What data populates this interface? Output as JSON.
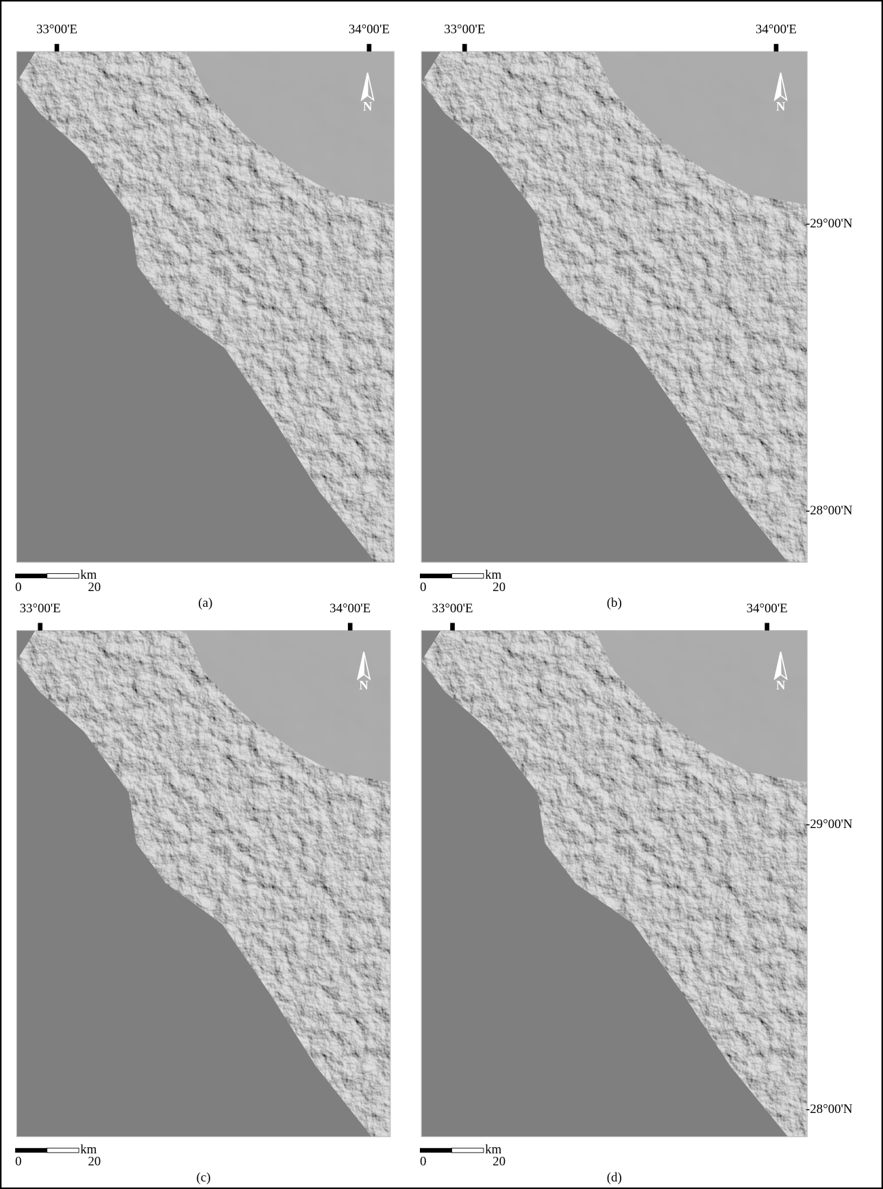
{
  "panels": [
    {
      "caption": "(a)",
      "lon_labels": [
        "33°00'E",
        "34°00'E"
      ],
      "lat_labels": [],
      "north_label": "N",
      "scale": {
        "unit": "km",
        "ticks": [
          0,
          20
        ]
      }
    },
    {
      "caption": "(b)",
      "lon_labels": [
        "33°00'E",
        "34°00'E"
      ],
      "lat_labels": [
        "-29°00'N",
        "-28°00'N"
      ],
      "north_label": "N",
      "scale": {
        "unit": "km",
        "ticks": [
          0,
          20
        ]
      }
    },
    {
      "caption": "(c)",
      "lon_labels": [
        "33°00'E",
        "34°00'E"
      ],
      "lat_labels": [],
      "north_label": "N",
      "scale": {
        "unit": "km",
        "ticks": [
          0,
          20
        ]
      }
    },
    {
      "caption": "(d)",
      "lon_labels": [
        "33°00'E",
        "34°00'E"
      ],
      "lat_labels": [
        "-29°00'N",
        "-28°00'N"
      ],
      "north_label": "N",
      "scale": {
        "unit": "km",
        "ticks": [
          0,
          20
        ]
      }
    }
  ]
}
